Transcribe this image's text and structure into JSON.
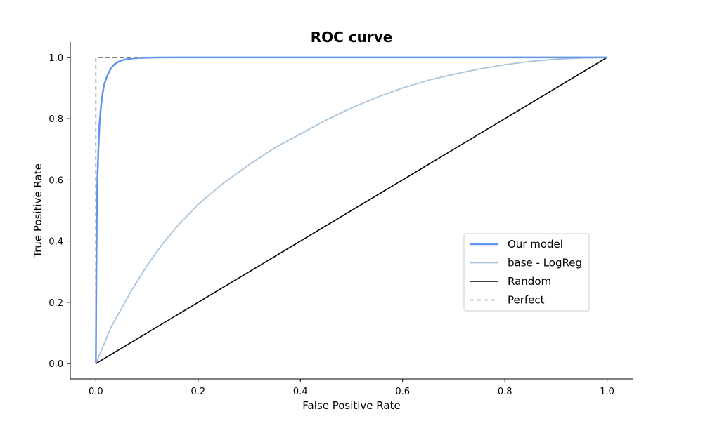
{
  "chart_data": {
    "type": "line",
    "title": "ROC curve",
    "xlabel": "False Positive Rate",
    "ylabel": "True Positive Rate",
    "xlim": [
      -0.05,
      1.05
    ],
    "ylim": [
      -0.05,
      1.05
    ],
    "xticks": [
      "0.0",
      "0.2",
      "0.4",
      "0.6",
      "0.8",
      "1.0"
    ],
    "yticks": [
      "0.0",
      "0.2",
      "0.4",
      "0.6",
      "0.8",
      "1.0"
    ],
    "grid": false,
    "legend_position": "center-right",
    "series": [
      {
        "name": "Our model",
        "color": "#6495ED",
        "style": "solid",
        "x": [
          0,
          0.001,
          0.002,
          0.003,
          0.005,
          0.007,
          0.01,
          0.013,
          0.016,
          0.02,
          0.025,
          0.03,
          0.035,
          0.04,
          0.05,
          0.06,
          0.07,
          0.08,
          0.1,
          0.12,
          0.15,
          0.2,
          0.3,
          0.5,
          0.7,
          1.0
        ],
        "y": [
          0,
          0.3,
          0.5,
          0.6,
          0.7,
          0.78,
          0.84,
          0.88,
          0.91,
          0.93,
          0.95,
          0.965,
          0.975,
          0.982,
          0.99,
          0.994,
          0.996,
          0.998,
          0.999,
          0.9995,
          1.0,
          1.0,
          1.0,
          1.0,
          1.0,
          1.0
        ]
      },
      {
        "name": "base - LogReg",
        "color": "#A9C4DA",
        "style": "solid",
        "x": [
          0,
          0.01,
          0.02,
          0.03,
          0.05,
          0.07,
          0.1,
          0.13,
          0.16,
          0.2,
          0.25,
          0.3,
          0.35,
          0.4,
          0.45,
          0.5,
          0.55,
          0.6,
          0.65,
          0.7,
          0.75,
          0.8,
          0.85,
          0.9,
          0.95,
          1.0
        ],
        "y": [
          0,
          0.04,
          0.08,
          0.12,
          0.18,
          0.24,
          0.32,
          0.39,
          0.45,
          0.52,
          0.59,
          0.65,
          0.705,
          0.75,
          0.795,
          0.835,
          0.87,
          0.9,
          0.925,
          0.945,
          0.962,
          0.976,
          0.987,
          0.994,
          0.998,
          1.0
        ]
      },
      {
        "name": "Random",
        "color": "#000000",
        "style": "solid",
        "x": [
          0,
          1.0
        ],
        "y": [
          0,
          1.0
        ]
      },
      {
        "name": "Perfect",
        "color": "#808080",
        "style": "dashed",
        "x": [
          0,
          0,
          1.0
        ],
        "y": [
          0,
          1.0,
          1.0
        ]
      }
    ]
  }
}
